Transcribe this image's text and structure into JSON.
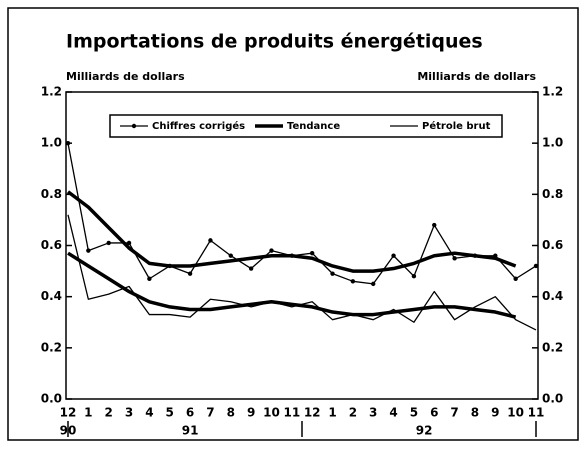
{
  "chart_data": {
    "type": "line",
    "title": "Importations de produits énergétiques",
    "y_label": "Milliards de dollars",
    "y2_label": "Milliards de dollars",
    "categories": [
      "12",
      "1",
      "2",
      "3",
      "4",
      "5",
      "6",
      "7",
      "8",
      "9",
      "10",
      "11",
      "12",
      "1",
      "2",
      "3",
      "4",
      "5",
      "6",
      "7",
      "8",
      "9",
      "10",
      "11"
    ],
    "years": [
      "90",
      "91",
      "92"
    ],
    "series": [
      {
        "name": "Chiffres corrigés",
        "color": "#000000",
        "style": "markers",
        "values": [
          1.0,
          0.58,
          0.61,
          0.61,
          0.47,
          0.52,
          0.49,
          0.62,
          0.56,
          0.51,
          0.58,
          0.56,
          0.57,
          0.49,
          0.46,
          0.45,
          0.56,
          0.48,
          0.68,
          0.55,
          0.56,
          0.56,
          0.47,
          0.52
        ]
      },
      {
        "name": "Tendance",
        "color": "#000000",
        "style": "thick",
        "values": [
          0.81,
          0.75,
          0.67,
          0.59,
          0.53,
          0.52,
          0.52,
          0.53,
          0.54,
          0.55,
          0.56,
          0.56,
          0.55,
          0.52,
          0.5,
          0.5,
          0.51,
          0.53,
          0.56,
          0.57,
          0.56,
          0.55,
          0.52,
          null
        ]
      },
      {
        "name": "Pétrole brut",
        "color": "#000000",
        "style": "thin",
        "values": [
          0.72,
          0.39,
          0.41,
          0.44,
          0.33,
          0.33,
          0.32,
          0.39,
          0.38,
          0.36,
          0.38,
          0.36,
          0.38,
          0.31,
          0.33,
          0.31,
          0.35,
          0.3,
          0.42,
          0.31,
          0.36,
          0.4,
          0.31,
          0.27
        ]
      },
      {
        "color": "#000000",
        "style": "thick",
        "values": [
          0.57,
          0.52,
          0.47,
          0.42,
          0.38,
          0.36,
          0.35,
          0.35,
          0.36,
          0.37,
          0.38,
          0.37,
          0.36,
          0.34,
          0.33,
          0.33,
          0.34,
          0.35,
          0.36,
          0.36,
          0.35,
          0.34,
          0.32,
          null
        ]
      }
    ],
    "ylim": [
      0,
      1.2
    ],
    "yticks": [
      {
        "value": 0,
        "label": "0.0"
      },
      {
        "value": 0.2,
        "label": "0.2"
      },
      {
        "value": 0.4,
        "label": "0.4"
      },
      {
        "value": 0.6,
        "label": "0.6"
      },
      {
        "value": 0.8,
        "label": "0.8"
      },
      {
        "value": 1.0,
        "label": "1.0"
      },
      {
        "value": 1.2,
        "label": "1.2"
      }
    ],
    "y2lim": [
      0,
      1.2
    ],
    "y2ticks": [
      {
        "value": 0,
        "label": "0.0"
      },
      {
        "value": 0.2,
        "label": "0.2"
      },
      {
        "value": 0.4,
        "label": "0.4"
      },
      {
        "value": 0.6,
        "label": "0.6"
      },
      {
        "value": 0.8,
        "label": "0.8"
      },
      {
        "value": 1.0,
        "label": "1.0"
      },
      {
        "value": 1.2,
        "label": "1.2"
      }
    ],
    "legend": "top",
    "grid": false
  }
}
